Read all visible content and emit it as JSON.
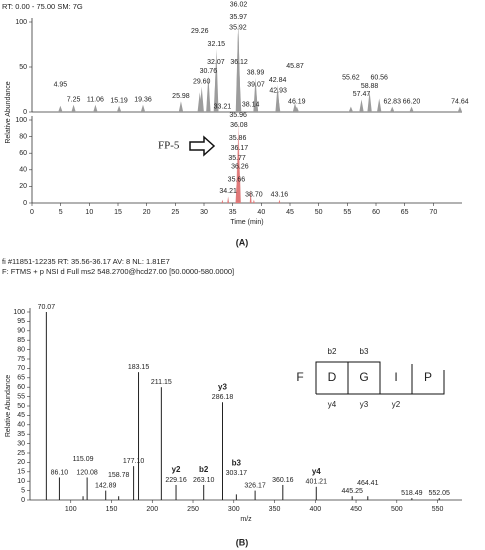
{
  "chart_data": [
    {
      "type": "area",
      "title": "RT: 0.00 - 75.00   SM: 7G",
      "title_color": "#2a3fa0",
      "ylabel": "Relative Abundance",
      "x": [
        4.95,
        7.25,
        11.06,
        15.19,
        19.36,
        25.98,
        29.26,
        29.6,
        30.76,
        32.07,
        32.15,
        35.92,
        35.97,
        36.02,
        36.12,
        38.99,
        39.07,
        42.84,
        42.93,
        45.87,
        46.19,
        55.62,
        57.47,
        58.88,
        60.56,
        62.83,
        66.2,
        74.64
      ],
      "x_labels": [
        "4.95",
        "7.25",
        "11.06",
        "15.19",
        "19.36",
        "25.98",
        "29.26",
        "29.60",
        "30.76",
        "32.07",
        "32.15",
        "35.92",
        "35.97",
        "36.02",
        "36.12",
        "38.99",
        "39.07",
        "42.84",
        "42.93",
        "45.87",
        "46.19",
        "55.62",
        "57.47",
        "58.88",
        "60.56",
        "62.83",
        "66.20",
        "74.64"
      ],
      "values": [
        7,
        8,
        8,
        7,
        8,
        12,
        22,
        28,
        40,
        50,
        70,
        88,
        100,
        87,
        50,
        38,
        25,
        30,
        18,
        10,
        6,
        6,
        14,
        23,
        15,
        6,
        6,
        6
      ],
      "color": "#9c9c9c",
      "xlim": [
        0,
        75
      ],
      "ylim": [
        0,
        100
      ],
      "yticks": [
        0,
        50,
        100
      ]
    },
    {
      "type": "area",
      "xlabel": "Time (min)",
      "annotation": "FP-5",
      "x": [
        33.21,
        34.21,
        35.66,
        35.77,
        35.86,
        35.96,
        36.08,
        36.17,
        36.26,
        38.14,
        38.7,
        43.16
      ],
      "x_labels": [
        "33.21",
        "34.21",
        "35.66",
        "35.77",
        "35.86",
        "35.96",
        "36.08",
        "36.17",
        "36.26",
        "38.14",
        "38.70",
        "43.16"
      ],
      "values": [
        4,
        8,
        22,
        48,
        72,
        100,
        88,
        60,
        38,
        16,
        4,
        4
      ],
      "color": "#e07878",
      "xlim": [
        0,
        75
      ],
      "ylim": [
        0,
        100
      ],
      "yticks": [
        0,
        20,
        40,
        60,
        80,
        100
      ],
      "xticks": [
        0,
        5,
        10,
        15,
        20,
        25,
        30,
        35,
        40,
        45,
        50,
        55,
        60,
        65,
        70
      ]
    },
    {
      "type": "spectrum",
      "title": "fi #11851-12235  RT: 35.56-36.17  AV: 8  NL: 1.81E7",
      "title_color": "#2a3fa0",
      "subtitle": "F: FTMS + p NSI d Full ms2 548.2700@hcd27.00 [50.0000-580.0000]",
      "subtitle_color": "#c02020",
      "ylabel": "Relative Abundance",
      "xlabel": "m/z",
      "x": [
        70.07,
        86.1,
        115.09,
        120.08,
        142.89,
        158.78,
        177.1,
        183.15,
        211.15,
        229.16,
        263.1,
        286.18,
        303.17,
        326.17,
        360.16,
        401.21,
        445.25,
        464.41,
        518.49,
        552.05
      ],
      "x_labels": [
        "70.07",
        "86.10",
        "115.09",
        "120.08",
        "142.89",
        "158.78",
        "177.10",
        "183.15",
        "211.15",
        "229.16",
        "263.10",
        "286.18",
        "303.17",
        "326.17",
        "360.16",
        "401.21",
        "445.25",
        "464.41",
        "518.49",
        "552.05"
      ],
      "values": [
        100,
        12,
        2,
        12,
        5,
        2,
        18,
        68,
        60,
        8,
        8,
        52,
        3,
        5,
        8,
        7,
        2,
        2,
        1,
        1
      ],
      "ion_labels": [
        null,
        null,
        null,
        null,
        null,
        null,
        null,
        null,
        null,
        "y2",
        "b2",
        "y3",
        "b3",
        null,
        null,
        "y4",
        null,
        null,
        null,
        null
      ],
      "ion_colors": [
        null,
        null,
        null,
        null,
        null,
        null,
        null,
        null,
        null,
        "#1f6fa8",
        "#d02020",
        "#1f6fa8",
        "#d02020",
        null,
        null,
        "#1f6fa8",
        null,
        null,
        null,
        null
      ],
      "color": "#222222",
      "xlim": [
        50,
        580
      ],
      "ylim": [
        0,
        100
      ],
      "yticks": [
        0,
        5,
        10,
        15,
        20,
        25,
        30,
        35,
        40,
        45,
        50,
        55,
        60,
        65,
        70,
        75,
        80,
        85,
        90,
        95,
        100
      ],
      "xticks": [
        100,
        150,
        200,
        250,
        300,
        350,
        400,
        450,
        500,
        550
      ]
    }
  ],
  "figure_labels": [
    "(A)",
    "(B)"
  ],
  "fragment_diagram": {
    "residues": [
      "F",
      "D",
      "G",
      "I",
      "P"
    ],
    "b_ions": [
      "b2",
      "b3"
    ],
    "y_ions": [
      "y4",
      "y3",
      "y2"
    ]
  }
}
